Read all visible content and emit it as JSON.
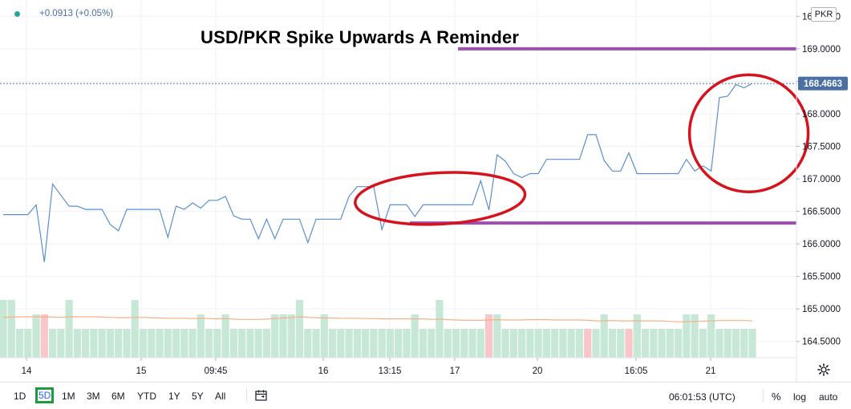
{
  "header": {
    "change_text": "+0.0913 (+0.05%)",
    "currency": "PKR"
  },
  "chart_data": {
    "type": "line",
    "title": "USD/PKR Spike Upwards A Reminder",
    "ylim": [
      164.25,
      169.75
    ],
    "yticks": [
      164.5,
      165.0,
      165.5,
      166.0,
      166.5,
      167.0,
      167.5,
      168.0,
      168.5,
      169.0,
      169.5
    ],
    "ytick_labels": [
      "164.5000",
      "165.0000",
      "165.5000",
      "166.0000",
      "166.5000",
      "167.0000",
      "167.5000",
      "168.0000",
      "168.5000",
      "169.0000",
      "169.5000"
    ],
    "current_value": 168.4663,
    "current_label": "168.4663",
    "x_labels": [
      "14",
      "15",
      "09:45",
      "16",
      "13:15",
      "17",
      "20",
      "16:05",
      "21"
    ],
    "series": [
      {
        "values": [
          166.45,
          166.45,
          166.45,
          166.45,
          166.6,
          165.72,
          166.92,
          166.75,
          166.58,
          166.58,
          166.53,
          166.53,
          166.53,
          166.3,
          166.2,
          166.53,
          166.53,
          166.53,
          166.53,
          166.53,
          166.1,
          166.58,
          166.53,
          166.63,
          166.55,
          166.67,
          166.67,
          166.73,
          166.43,
          166.38,
          166.38,
          166.08,
          166.38,
          166.08,
          166.38,
          166.38,
          166.38,
          166.02,
          166.38,
          166.38,
          166.38,
          166.38,
          166.73,
          166.88,
          166.88,
          166.88,
          166.22,
          166.6,
          166.6,
          166.6,
          166.42,
          166.6,
          166.6,
          166.6,
          166.6,
          166.6,
          166.6,
          166.6,
          166.97,
          166.52,
          167.37,
          167.27,
          167.08,
          167.02,
          167.08,
          167.08,
          167.3,
          167.3,
          167.3,
          167.3,
          167.3,
          167.68,
          167.68,
          167.28,
          167.12,
          167.12,
          167.4,
          167.08,
          167.08,
          167.08,
          167.08,
          167.08,
          167.08,
          167.3,
          167.12,
          167.2,
          167.12,
          168.25,
          168.27,
          168.45,
          168.4,
          168.47
        ]
      }
    ],
    "volume": {
      "values": [
        2,
        2,
        1,
        1,
        1.5,
        1.5,
        1,
        1,
        2,
        1,
        1,
        1,
        1,
        1,
        1,
        1,
        2,
        1,
        1,
        1,
        1,
        1,
        1,
        1,
        1.5,
        1,
        1,
        1.5,
        1,
        1,
        1,
        1,
        1,
        1.5,
        1.5,
        1.5,
        2,
        1,
        1,
        1.5,
        1,
        1,
        1,
        1,
        1,
        1,
        1,
        1,
        1,
        1,
        1.5,
        1,
        1,
        2,
        1,
        1,
        1,
        1,
        1,
        1.5,
        1.5,
        1,
        1,
        1,
        1,
        1,
        1,
        1,
        1,
        1,
        1,
        1,
        1,
        1.5,
        1,
        1,
        1,
        1.5,
        1,
        1,
        1,
        1,
        1,
        1.5,
        1.5,
        1,
        1.5,
        1,
        1,
        1,
        1,
        1
      ],
      "down_indices": [
        5,
        59,
        71,
        76
      ],
      "average": [
        0.84,
        0.85,
        0.86,
        0.86,
        0.86,
        0.86,
        0.85,
        0.84,
        0.86,
        0.86,
        0.86,
        0.86,
        0.85,
        0.84,
        0.83,
        0.83,
        0.84,
        0.84,
        0.83,
        0.82,
        0.81,
        0.81,
        0.81,
        0.8,
        0.81,
        0.8,
        0.79,
        0.8,
        0.78,
        0.77,
        0.77,
        0.77,
        0.78,
        0.8,
        0.82,
        0.84,
        0.86,
        0.84,
        0.83,
        0.82,
        0.82,
        0.81,
        0.81,
        0.81,
        0.8,
        0.8,
        0.79,
        0.79,
        0.79,
        0.79,
        0.79,
        0.79,
        0.77,
        0.78,
        0.76,
        0.75,
        0.74,
        0.74,
        0.74,
        0.75,
        0.76,
        0.75,
        0.75,
        0.75,
        0.76,
        0.76,
        0.76,
        0.75,
        0.75,
        0.75,
        0.75,
        0.74,
        0.72,
        0.72,
        0.73,
        0.72,
        0.72,
        0.72,
        0.72,
        0.72,
        0.72,
        0.7,
        0.69,
        0.69,
        0.7,
        0.71,
        0.72,
        0.73,
        0.73,
        0.73,
        0.73,
        0.72
      ]
    },
    "annotations": {
      "resistance_level": 169.0,
      "support_level": 166.32,
      "circles": [
        {
          "x_index": 59.5,
          "y": 166.6
        },
        {
          "x_index": 89.5,
          "y": 167.7
        }
      ]
    },
    "colors": {
      "line": "#5b8fd1",
      "volume_up": "#c8e8d7",
      "volume_down": "#f9c6ca",
      "volume_avg": "#f4b183",
      "level_lines": "#9b4fae",
      "circles": "#d6121c",
      "price_line": "#4a6fa5"
    },
    "grid": true
  },
  "toolbar": {
    "ranges": [
      "1D",
      "5D",
      "1M",
      "3M",
      "6M",
      "YTD",
      "1Y",
      "5Y",
      "All"
    ],
    "active_range": "5D",
    "time": "06:01:53 (UTC)",
    "percent": "%",
    "log": "log",
    "auto": "auto"
  },
  "icons": {
    "calendar": "calendar-icon",
    "settings": "gear-icon"
  }
}
